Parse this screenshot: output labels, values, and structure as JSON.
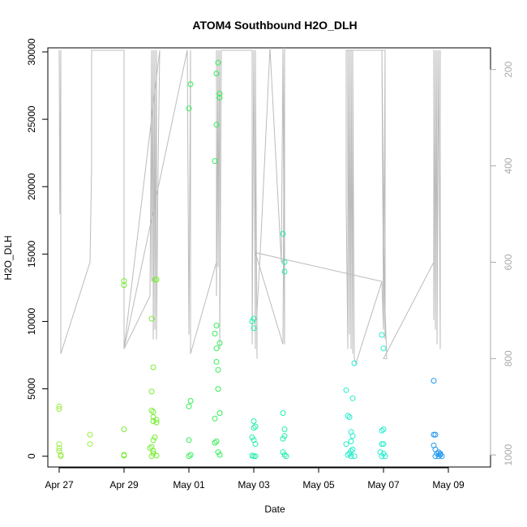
{
  "chart_data": {
    "type": "scatter",
    "title": "ATOM4 Southbound H2O_DLH",
    "xlabel": "Date",
    "ylabel": "H2O_DLH",
    "x_ticks": [
      "Apr 27",
      "Apr 29",
      "May 01",
      "May 03",
      "May 05",
      "May 07",
      "May 09"
    ],
    "y_ticks": [
      "0",
      "5000",
      "10000",
      "15000",
      "20000",
      "25000",
      "30000"
    ],
    "right_ticks": [
      "200",
      "400",
      "600",
      "800",
      "1000"
    ],
    "xlim": [
      -0.35,
      13.3
    ],
    "ylim": [
      -800,
      30300
    ],
    "right_ylim": [
      1025,
      155
    ],
    "x_origin": "Apr 27",
    "colors": {
      "points_early": "#99ee44",
      "points_mid": "#33ee55",
      "points_late": "#22eecc",
      "points_final": "#2299ee",
      "pressure_line": "#bbbbbb"
    },
    "series": [
      {
        "color": "#99ee44",
        "points": [
          [
            0.0,
            3700
          ],
          [
            0.0,
            3500
          ],
          [
            0.0,
            900
          ],
          [
            0.0,
            600
          ],
          [
            0.0,
            400
          ],
          [
            0.05,
            100
          ],
          [
            0.05,
            0
          ],
          [
            0.95,
            1600
          ],
          [
            0.95,
            900
          ]
        ]
      },
      {
        "color": "#77ee33",
        "points": [
          [
            2.0,
            13000
          ],
          [
            2.0,
            12700
          ],
          [
            2.0,
            2000
          ],
          [
            2.0,
            100
          ],
          [
            2.0,
            50
          ],
          [
            2.85,
            10200
          ],
          [
            2.85,
            700
          ],
          [
            2.8,
            600
          ],
          [
            2.9,
            400
          ],
          [
            2.95,
            13100
          ],
          [
            3.0,
            13100
          ],
          [
            2.9,
            6600
          ],
          [
            2.85,
            4800
          ],
          [
            2.85,
            3400
          ],
          [
            2.9,
            3300
          ],
          [
            2.9,
            2900
          ],
          [
            3.0,
            2700
          ],
          [
            3.0,
            2500
          ],
          [
            2.9,
            2600
          ],
          [
            2.95,
            1400
          ],
          [
            2.9,
            1200
          ],
          [
            2.9,
            200
          ],
          [
            3.0,
            50
          ],
          [
            2.85,
            0
          ]
        ]
      },
      {
        "color": "#33ee55",
        "points": [
          [
            4.0,
            25800
          ],
          [
            4.05,
            27600
          ],
          [
            4.05,
            4100
          ],
          [
            4.0,
            3700
          ],
          [
            4.0,
            1200
          ],
          [
            4.05,
            100
          ],
          [
            4.0,
            0
          ],
          [
            4.9,
            29200
          ],
          [
            4.85,
            28400
          ],
          [
            4.95,
            26900
          ],
          [
            4.95,
            26600
          ],
          [
            4.85,
            24600
          ],
          [
            4.8,
            21900
          ],
          [
            4.85,
            9700
          ],
          [
            4.8,
            9100
          ],
          [
            4.95,
            8400
          ],
          [
            4.85,
            8000
          ],
          [
            4.85,
            7000
          ],
          [
            4.9,
            6400
          ],
          [
            4.9,
            5000
          ],
          [
            4.95,
            3200
          ],
          [
            4.8,
            2800
          ],
          [
            4.85,
            1100
          ],
          [
            4.8,
            1000
          ],
          [
            4.9,
            300
          ],
          [
            4.95,
            100
          ]
        ]
      },
      {
        "color": "#22eeaa",
        "points": [
          [
            5.95,
            10000
          ],
          [
            6.0,
            10200
          ],
          [
            6.0,
            9500
          ],
          [
            6.0,
            2600
          ],
          [
            6.05,
            2200
          ],
          [
            6.0,
            2100
          ],
          [
            5.95,
            1400
          ],
          [
            6.0,
            1200
          ],
          [
            6.05,
            900
          ],
          [
            5.95,
            50
          ],
          [
            6.0,
            0
          ],
          [
            6.05,
            0
          ],
          [
            6.9,
            16500
          ],
          [
            6.95,
            14400
          ],
          [
            6.95,
            13700
          ],
          [
            6.9,
            3200
          ],
          [
            6.95,
            2000
          ],
          [
            6.9,
            1300
          ],
          [
            6.95,
            1500
          ],
          [
            6.9,
            300
          ],
          [
            6.95,
            100
          ],
          [
            7.0,
            0
          ]
        ]
      },
      {
        "color": "#22eecc",
        "points": [
          [
            8.85,
            4900
          ],
          [
            9.1,
            6900
          ],
          [
            9.05,
            4300
          ],
          [
            8.9,
            3000
          ],
          [
            8.95,
            2900
          ],
          [
            9.0,
            1800
          ],
          [
            9.05,
            1500
          ],
          [
            9.0,
            1100
          ],
          [
            8.85,
            900
          ],
          [
            9.0,
            400
          ],
          [
            8.95,
            200
          ],
          [
            9.05,
            500
          ],
          [
            8.9,
            100
          ],
          [
            9.0,
            0
          ],
          [
            9.1,
            0
          ],
          [
            9.95,
            9000
          ],
          [
            10.0,
            8000
          ],
          [
            9.95,
            1900
          ],
          [
            10.0,
            2000
          ],
          [
            9.95,
            900
          ],
          [
            10.0,
            900
          ],
          [
            9.9,
            300
          ],
          [
            10.0,
            200
          ],
          [
            9.95,
            0
          ],
          [
            10.05,
            0
          ]
        ]
      },
      {
        "color": "#2299ee",
        "points": [
          [
            11.55,
            5600
          ],
          [
            11.55,
            1600
          ],
          [
            11.6,
            1600
          ],
          [
            11.55,
            800
          ],
          [
            11.6,
            500
          ],
          [
            11.65,
            200
          ],
          [
            11.7,
            300
          ],
          [
            11.75,
            100
          ],
          [
            11.7,
            0
          ],
          [
            11.6,
            0
          ],
          [
            11.75,
            200
          ],
          [
            11.8,
            0
          ]
        ]
      }
    ],
    "pressure_line": [
      [
        0.0,
        160
      ],
      [
        0.02,
        500
      ],
      [
        0.05,
        160
      ],
      [
        0.05,
        790
      ],
      [
        0.95,
        600
      ],
      [
        1.0,
        400
      ],
      [
        1.0,
        160
      ],
      [
        1.0,
        160
      ],
      [
        2.0,
        160
      ],
      [
        2.0,
        780
      ],
      [
        2.8,
        670
      ],
      [
        2.85,
        160
      ],
      [
        2.85,
        640
      ],
      [
        2.9,
        160
      ],
      [
        2.9,
        760
      ],
      [
        2.95,
        160
      ],
      [
        2.95,
        740
      ],
      [
        3.0,
        160
      ],
      [
        3.0,
        760
      ],
      [
        3.05,
        400
      ],
      [
        3.1,
        160
      ],
      [
        2.0,
        780
      ],
      [
        3.95,
        160
      ],
      [
        4.0,
        750
      ],
      [
        4.05,
        160
      ],
      [
        4.05,
        790
      ],
      [
        4.85,
        600
      ],
      [
        4.85,
        160
      ],
      [
        4.85,
        670
      ],
      [
        4.9,
        160
      ],
      [
        4.9,
        610
      ],
      [
        4.95,
        160
      ],
      [
        4.95,
        780
      ],
      [
        5.0,
        160
      ],
      [
        5.0,
        160
      ],
      [
        5.95,
        160
      ],
      [
        5.95,
        510
      ],
      [
        5.95,
        770
      ],
      [
        6.0,
        160
      ],
      [
        6.05,
        780
      ],
      [
        6.05,
        160
      ],
      [
        6.1,
        800
      ],
      [
        6.1,
        700
      ],
      [
        6.2,
        580
      ],
      [
        6.5,
        155
      ],
      [
        6.85,
        600
      ],
      [
        6.9,
        155
      ],
      [
        6.95,
        770
      ],
      [
        6.95,
        155
      ],
      [
        6.9,
        770
      ],
      [
        6.05,
        580
      ],
      [
        9.95,
        640
      ],
      [
        10.0,
        730
      ],
      [
        9.95,
        160
      ],
      [
        10.05,
        760
      ],
      [
        10.05,
        160
      ],
      [
        8.85,
        160
      ],
      [
        8.85,
        480
      ],
      [
        8.9,
        780
      ],
      [
        8.9,
        160
      ],
      [
        8.95,
        750
      ],
      [
        8.95,
        160
      ],
      [
        9.0,
        780
      ],
      [
        9.0,
        160
      ],
      [
        9.05,
        790
      ],
      [
        9.05,
        160
      ],
      [
        9.1,
        800
      ],
      [
        9.15,
        810
      ],
      [
        9.95,
        640
      ],
      [
        10.0,
        740
      ],
      [
        10.05,
        160
      ],
      [
        10.05,
        700
      ],
      [
        10.1,
        800
      ],
      [
        10.0,
        800
      ],
      [
        11.55,
        600
      ],
      [
        11.55,
        160
      ],
      [
        11.55,
        720
      ],
      [
        11.6,
        160
      ],
      [
        11.6,
        740
      ],
      [
        11.65,
        160
      ],
      [
        11.65,
        770
      ],
      [
        11.7,
        160
      ],
      [
        11.75,
        780
      ],
      [
        11.75,
        160
      ]
    ]
  }
}
